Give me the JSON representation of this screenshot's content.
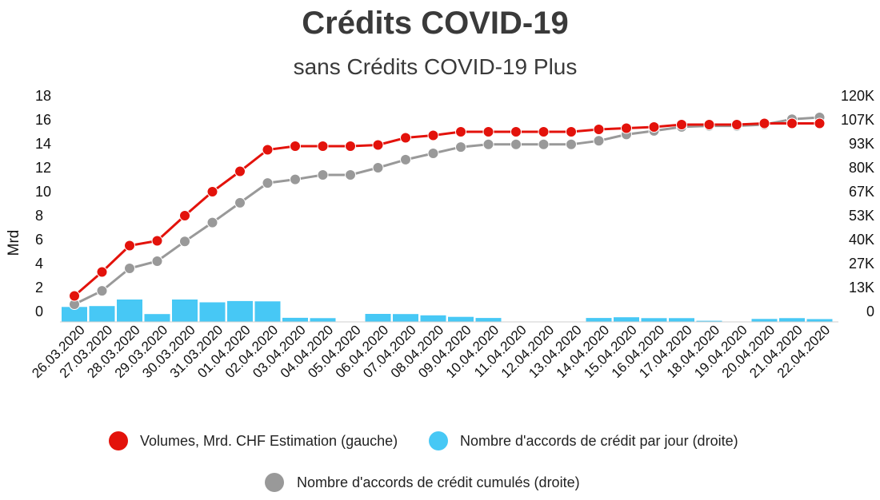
{
  "chart_data": {
    "type": "bar+line",
    "title": "Crédits COVID-19",
    "subtitle": "sans Crédits COVID-19 Plus",
    "ylabel_left": "Mrd",
    "ylim_left": [
      0,
      18
    ],
    "yticks_left": [
      "0",
      "2",
      "4",
      "6",
      "8",
      "10",
      "12",
      "14",
      "16",
      "18"
    ],
    "ylim_right": [
      0,
      120000
    ],
    "yticks_right": [
      "0",
      "13K",
      "27K",
      "40K",
      "53K",
      "67K",
      "80K",
      "93K",
      "107K",
      "120K"
    ],
    "categories": [
      "26.03.2020",
      "27.03.2020",
      "28.03.2020",
      "29.03.2020",
      "30.03.2020",
      "31.03.2020",
      "01.04.2020",
      "02.04.2020",
      "03.04.2020",
      "04.04.2020",
      "05.04.2020",
      "06.04.2020",
      "07.04.2020",
      "08.04.2020",
      "09.04.2020",
      "10.04.2020",
      "11.04.2020",
      "12.04.2020",
      "13.04.2020",
      "14.04.2020",
      "15.04.2020",
      "16.04.2020",
      "17.04.2020",
      "18.04.2020",
      "19.04.2020",
      "20.04.2020",
      "21.04.2020",
      "22.04.2020"
    ],
    "series": [
      {
        "name": "Volumes, Mrd. CHF Estimation (gauche)",
        "kind": "line",
        "axis": "left",
        "color": "#e3120b",
        "values": [
          1.3,
          3.3,
          5.5,
          5.9,
          8.0,
          10.0,
          11.7,
          13.5,
          13.8,
          13.8,
          13.8,
          13.9,
          14.5,
          14.7,
          15.0,
          15.0,
          15.0,
          15.0,
          15.0,
          15.2,
          15.3,
          15.4,
          15.6,
          15.6,
          15.6,
          15.7,
          15.7,
          15.7
        ]
      },
      {
        "name": "Nombre d'accords de crédit par jour (droite)",
        "kind": "bar",
        "axis": "right",
        "color": "#47c8f5",
        "values": [
          8000,
          8500,
          12000,
          4200,
          12000,
          10500,
          11200,
          11000,
          2200,
          2000,
          0,
          4300,
          4200,
          3500,
          2700,
          2100,
          0,
          0,
          0,
          2100,
          2500,
          2000,
          2000,
          600,
          0,
          1600,
          2000,
          1500
        ]
      },
      {
        "name": "Nombre d'accords de crédit cumulés (droite)",
        "kind": "line",
        "axis": "right",
        "color": "#999999",
        "values": [
          4000,
          11500,
          24000,
          28000,
          39000,
          49500,
          60500,
          71500,
          73500,
          76000,
          76000,
          80000,
          84500,
          88000,
          91500,
          93000,
          93000,
          93000,
          93000,
          95000,
          98500,
          100500,
          102700,
          103300,
          103300,
          104000,
          107000,
          108000
        ]
      }
    ],
    "legend_position": "bottom",
    "grid": false
  }
}
